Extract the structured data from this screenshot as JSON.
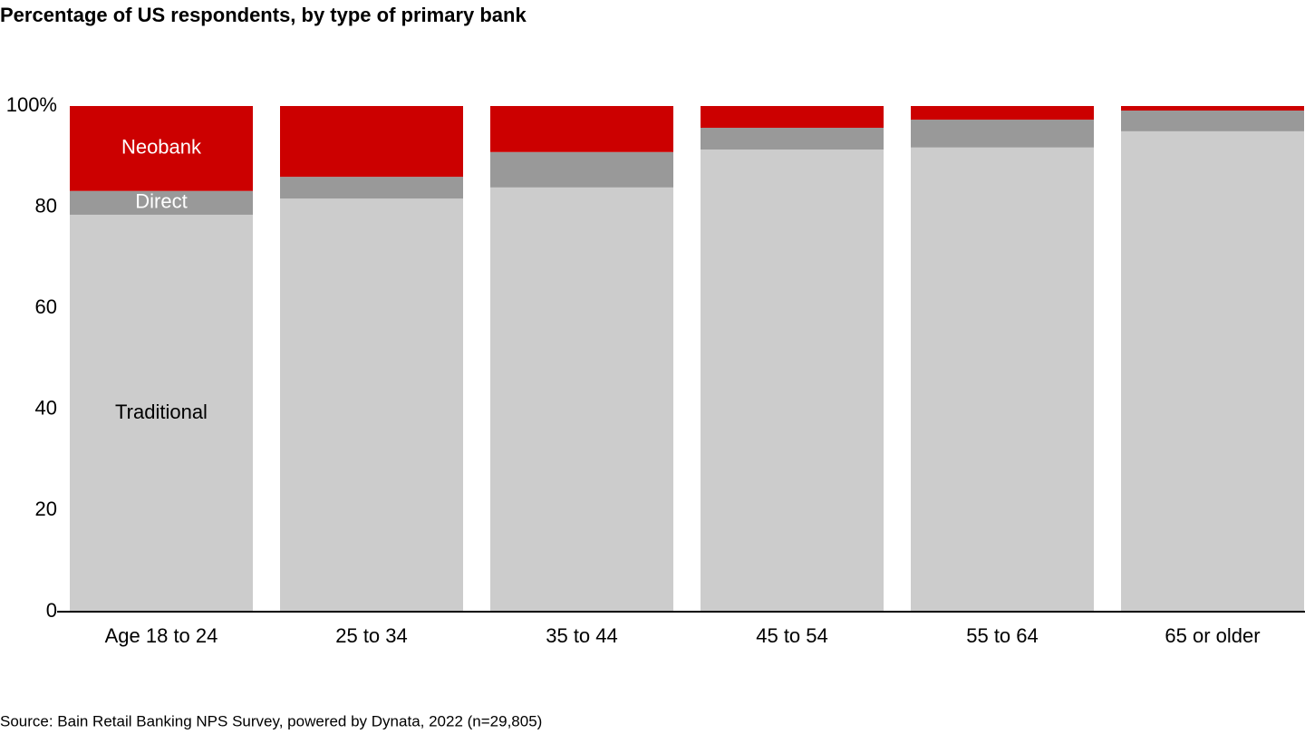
{
  "chart_data": {
    "type": "stacked_bar",
    "title": "Percentage of US respondents, by type of primary bank",
    "source": "Source: Bain Retail Banking NPS Survey, powered by Dynata, 2022 (n=29,805)",
    "categories": [
      "Age 18 to 24",
      "25 to 34",
      "35 to 44",
      "45 to 54",
      "55 to 64",
      "65 or older"
    ],
    "series": [
      {
        "name": "Traditional",
        "color": "#cccccc",
        "label_color": "#000000",
        "values": [
          78.5,
          81.7,
          83.9,
          91.4,
          91.8,
          95.0
        ]
      },
      {
        "name": "Direct",
        "color": "#999999",
        "label_color": "#ffffff",
        "values": [
          4.7,
          4.3,
          7.0,
          4.3,
          5.5,
          4.1
        ]
      },
      {
        "name": "Neobank",
        "color": "#cc0000",
        "label_color": "#ffffff",
        "values": [
          16.8,
          14.0,
          9.1,
          4.3,
          2.7,
          0.9
        ]
      }
    ],
    "ylim": [
      0,
      100
    ],
    "yticks": [
      0,
      20,
      40,
      60,
      80,
      {
        "value": 100,
        "label": "100%"
      }
    ],
    "grid": false
  }
}
